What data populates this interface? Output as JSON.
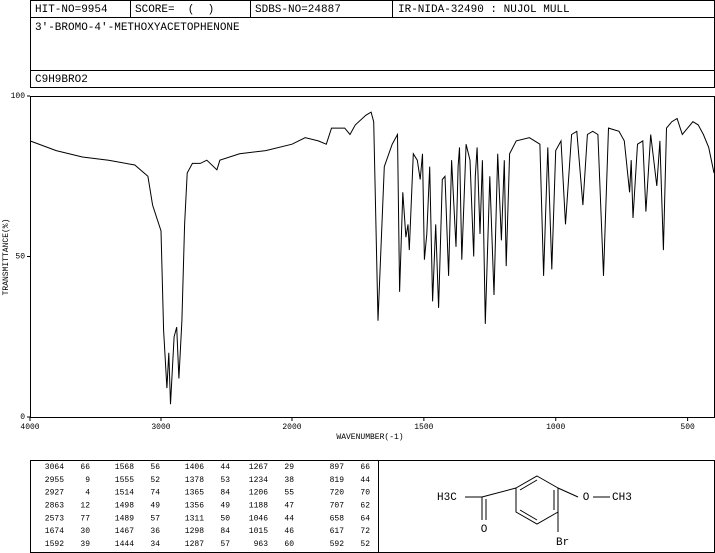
{
  "header": {
    "hit_no": "HIT-NO=9954",
    "score": "SCORE=  (  )",
    "sdbs_no": "SDBS-NO=24887",
    "method": "IR-NIDA-32490 : NUJOL MULL",
    "compound": "3'-BROMO-4'-METHOXYACETOPHENONE",
    "formula": "C9H9BRO2"
  },
  "chart_data": {
    "type": "line",
    "x_label": "WAVENUMBER(-1)",
    "y_label": "TRANSMITTANCE(%)",
    "color": "#000000",
    "xlim": [
      4000,
      400
    ],
    "x_break": 2000,
    "xticks": [
      4000,
      3000,
      2000,
      1500,
      1000,
      500
    ],
    "ylim": [
      0,
      100
    ],
    "yticks": [
      0,
      50,
      100
    ],
    "x": [
      4000,
      3800,
      3600,
      3400,
      3200,
      3100,
      3064,
      3000,
      2980,
      2955,
      2940,
      2927,
      2900,
      2880,
      2863,
      2840,
      2820,
      2800,
      2760,
      2700,
      2650,
      2573,
      2550,
      2400,
      2200,
      2000,
      1950,
      1900,
      1870,
      1850,
      1800,
      1780,
      1760,
      1720,
      1700,
      1690,
      1674,
      1650,
      1620,
      1600,
      1592,
      1580,
      1568,
      1560,
      1555,
      1540,
      1525,
      1514,
      1505,
      1498,
      1489,
      1478,
      1467,
      1455,
      1444,
      1430,
      1420,
      1406,
      1395,
      1378,
      1370,
      1365,
      1356,
      1340,
      1325,
      1311,
      1305,
      1298,
      1287,
      1278,
      1267,
      1250,
      1234,
      1220,
      1206,
      1195,
      1188,
      1175,
      1150,
      1100,
      1060,
      1046,
      1030,
      1015,
      1000,
      980,
      963,
      940,
      920,
      897,
      880,
      860,
      840,
      819,
      800,
      760,
      740,
      720,
      714,
      707,
      690,
      670,
      658,
      640,
      617,
      605,
      592,
      580,
      560,
      540,
      520,
      500,
      480,
      460,
      440,
      420,
      400
    ],
    "values": [
      86,
      83,
      81,
      80,
      78.5,
      75,
      66,
      58,
      27,
      9,
      20,
      4,
      25,
      28,
      12,
      30,
      60,
      76,
      79,
      79,
      80,
      77,
      80,
      82,
      83,
      85,
      87,
      86,
      85,
      90,
      90,
      88,
      91,
      94,
      95,
      92,
      30,
      78,
      85,
      88,
      39,
      70,
      56,
      60,
      52,
      82,
      80,
      74,
      82,
      49,
      57,
      78,
      36,
      60,
      34,
      74,
      75,
      44,
      80,
      53,
      78,
      84,
      49,
      85,
      80,
      50,
      75,
      84,
      57,
      80,
      29,
      75,
      38,
      82,
      55,
      80,
      47,
      82,
      86,
      87,
      85,
      44,
      84,
      46,
      83,
      86,
      60,
      88,
      89,
      66,
      88,
      89,
      88,
      44,
      90,
      89,
      86,
      70,
      80,
      62,
      85,
      86,
      64,
      88,
      72,
      86,
      52,
      90,
      92,
      93,
      88,
      90,
      92,
      91,
      88,
      84,
      76
    ]
  },
  "peak_table": {
    "columns": [
      [
        [
          "3064",
          "66"
        ],
        [
          "2955",
          "9"
        ],
        [
          "2927",
          "4"
        ],
        [
          "2863",
          "12"
        ],
        [
          "2573",
          "77"
        ],
        [
          "1674",
          "30"
        ],
        [
          "1592",
          "39"
        ]
      ],
      [
        [
          "1568",
          "56"
        ],
        [
          "1555",
          "52"
        ],
        [
          "1514",
          "74"
        ],
        [
          "1498",
          "49"
        ],
        [
          "1489",
          "57"
        ],
        [
          "1467",
          "36"
        ],
        [
          "1444",
          "34"
        ]
      ],
      [
        [
          "1406",
          "44"
        ],
        [
          "1378",
          "53"
        ],
        [
          "1365",
          "84"
        ],
        [
          "1356",
          "49"
        ],
        [
          "1311",
          "50"
        ],
        [
          "1298",
          "84"
        ],
        [
          "1287",
          "57"
        ]
      ],
      [
        [
          "1267",
          "29"
        ],
        [
          "1234",
          "38"
        ],
        [
          "1206",
          "55"
        ],
        [
          "1188",
          "47"
        ],
        [
          "1046",
          "44"
        ],
        [
          "1015",
          "46"
        ],
        [
          "963",
          "60"
        ]
      ],
      [
        [
          "897",
          "66"
        ],
        [
          "819",
          "44"
        ],
        [
          "720",
          "70"
        ],
        [
          "707",
          "62"
        ],
        [
          "658",
          "64"
        ],
        [
          "617",
          "72"
        ],
        [
          "592",
          "52"
        ]
      ]
    ]
  },
  "structure": {
    "methyl_left": "H3C",
    "carbonyl_o": "O",
    "ether_o": "O",
    "methyl_right": "CH3",
    "bromo": "Br"
  }
}
